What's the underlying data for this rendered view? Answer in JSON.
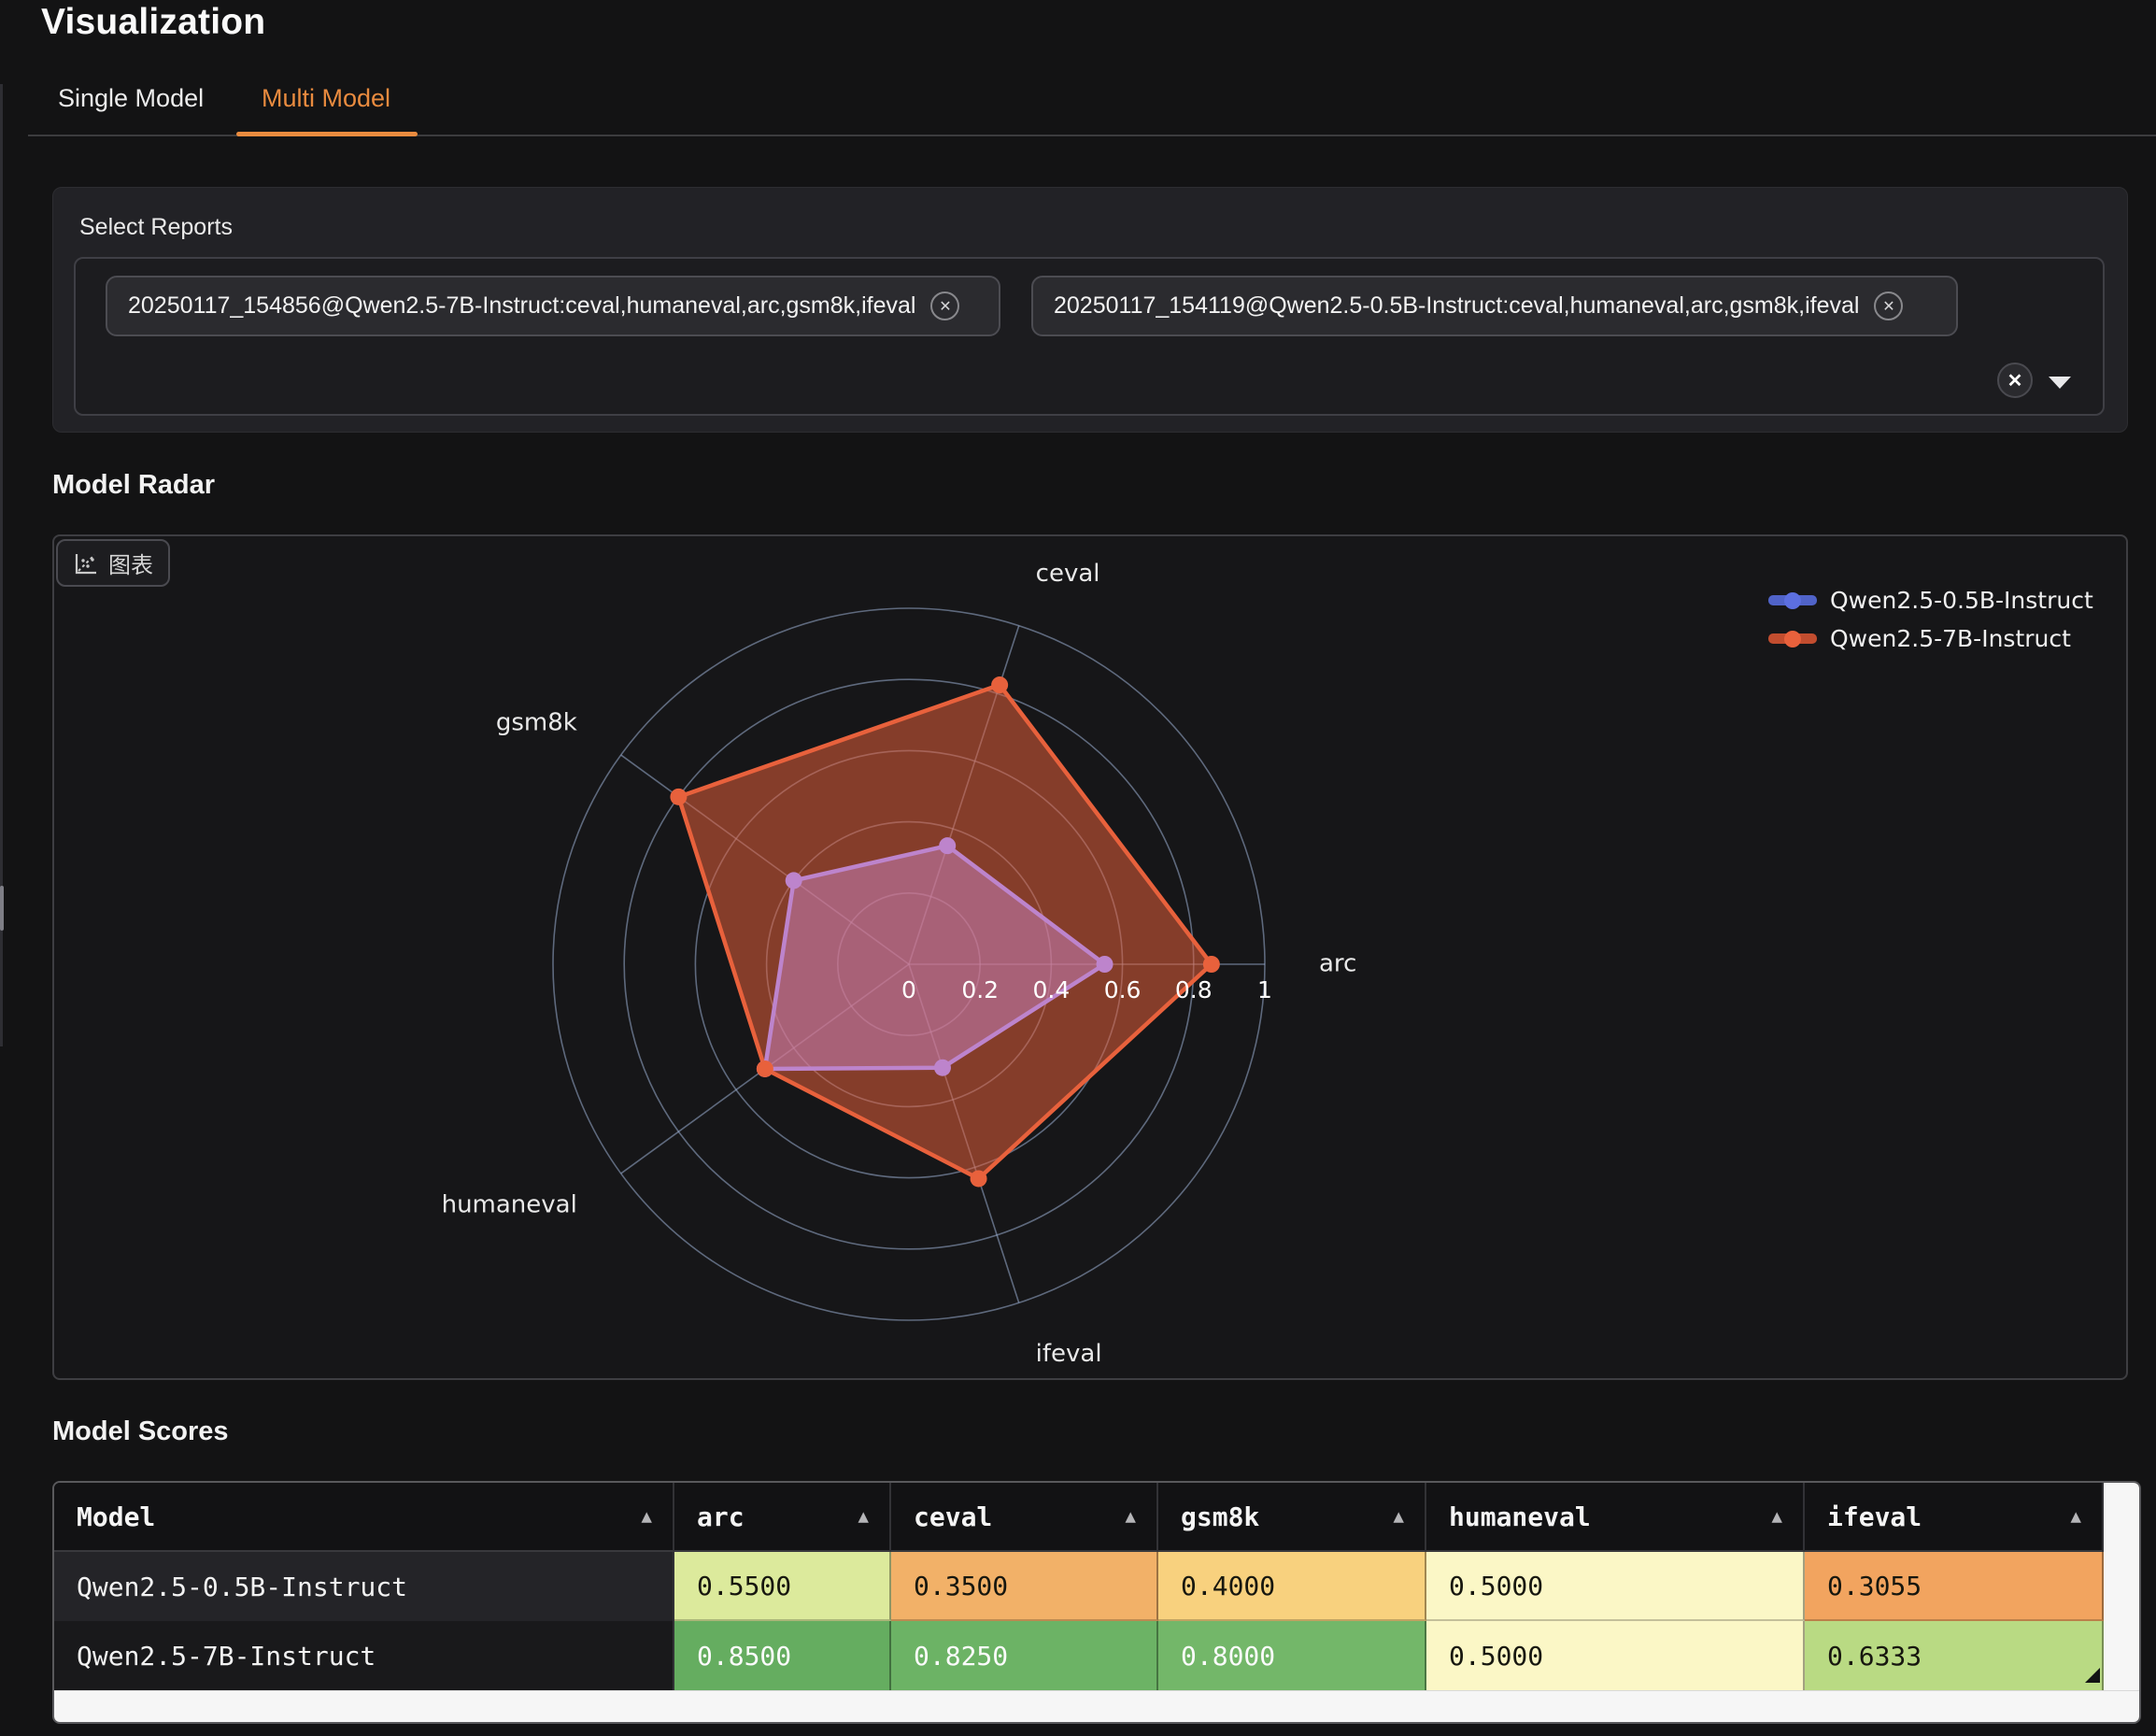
{
  "page": {
    "title": "Visualization"
  },
  "tabs": {
    "single_label": "Single Model",
    "multi_label": "Multi Model",
    "active": "Multi Model",
    "accent_color": "#e98b3f"
  },
  "select_reports": {
    "label": "Select Reports",
    "chips": [
      {
        "text": "20250117_154856@Qwen2.5-7B-Instruct:ceval,humaneval,arc,gsm8k,ifeval",
        "close_icon": "x-in-circle"
      },
      {
        "text": "20250117_154119@Qwen2.5-0.5B-Instruct:ceval,humaneval,arc,gsm8k,ifeval",
        "close_icon": "x-in-circle"
      }
    ],
    "clear_icon": "x-in-circle",
    "dropdown_icon": "caret-down"
  },
  "radar_section": {
    "heading": "Model Radar",
    "chart_tab_label": "图表"
  },
  "chart_data": {
    "type": "radar",
    "indicators": [
      "arc",
      "ceval",
      "gsm8k",
      "humaneval",
      "ifeval"
    ],
    "angles_deg": [
      0,
      72,
      144,
      216,
      288
    ],
    "max": 1,
    "rings": [
      0.2,
      0.4,
      0.6,
      0.8,
      1
    ],
    "tick_labels": [
      "0",
      "0.2",
      "0.4",
      "0.6",
      "0.8",
      "1"
    ],
    "grid_color": "rgba(155,175,210,0.55)",
    "grid_shape": "circle",
    "legend_position": "top-right",
    "series": [
      {
        "name": "Qwen2.5-7B-Instruct",
        "values": [
          0.85,
          0.825,
          0.8,
          0.5,
          0.6333
        ],
        "stroke": "#e8613c",
        "fill": "rgba(226,94,59,0.55)",
        "dot": "#e8613c"
      },
      {
        "name": "Qwen2.5-0.5B-Instruct",
        "values": [
          0.55,
          0.35,
          0.4,
          0.5,
          0.3055
        ],
        "stroke": "#bd84cc",
        "fill": "rgba(202,130,190,0.52)",
        "dot": "#bd84cc"
      }
    ],
    "legend": [
      {
        "name": "Qwen2.5-0.5B-Instruct",
        "line": "#5063c8",
        "dot": "#5c6fe0"
      },
      {
        "name": "Qwen2.5-7B-Instruct",
        "line": "#c24d2f",
        "dot": "#e8613c"
      }
    ]
  },
  "scores": {
    "heading": "Model Scores",
    "columns": [
      "Model",
      "arc",
      "ceval",
      "gsm8k",
      "humaneval",
      "ifeval"
    ],
    "sort_icon": "▲",
    "rows": [
      {
        "model": "Qwen2.5-0.5B-Instruct",
        "row_bg": "#242428",
        "cells": [
          {
            "value": "0.5500",
            "bg": "#dcea9c",
            "fg": "#17170f"
          },
          {
            "value": "0.3500",
            "bg": "#f2b168",
            "fg": "#17170f"
          },
          {
            "value": "0.4000",
            "bg": "#f8d17e",
            "fg": "#17170f"
          },
          {
            "value": "0.5000",
            "bg": "#fbf7c6",
            "fg": "#17170f"
          },
          {
            "value": "0.3055",
            "bg": "#f2a45f",
            "fg": "#17170f"
          }
        ]
      },
      {
        "model": "Qwen2.5-7B-Instruct",
        "row_bg": "#19191b",
        "cells": [
          {
            "value": "0.8500",
            "bg": "#65ad60",
            "fg": "#fbfbfb"
          },
          {
            "value": "0.8250",
            "bg": "#6cb365",
            "fg": "#fbfbfb"
          },
          {
            "value": "0.8000",
            "bg": "#73b769",
            "fg": "#fbfbfb"
          },
          {
            "value": "0.5000",
            "bg": "#fbf7c6",
            "fg": "#17170f"
          },
          {
            "value": "0.6333",
            "bg": "#b9da83",
            "fg": "#17170f"
          }
        ]
      }
    ]
  }
}
